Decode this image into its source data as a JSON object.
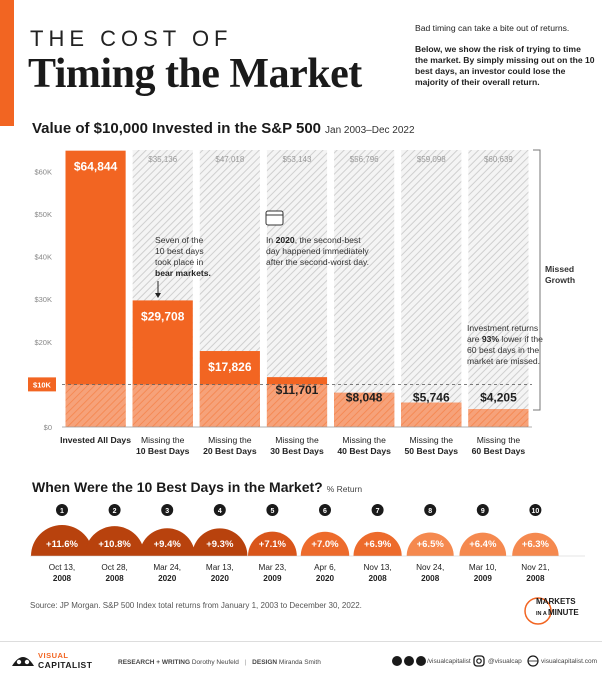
{
  "header": {
    "kicker": "THE COST OF",
    "title": "Timing the Market",
    "intro_1": "Bad timing can take a bite out of returns.",
    "intro_2": "Below, we show the risk of trying to time the market. By simply missing out on the 10 best days, an investor could lose the majority of their overall return."
  },
  "colors": {
    "accent": "#f26522",
    "dark_accent": "#c5400f",
    "grey_hatch": "#c9c9c9"
  },
  "chart_data": [
    {
      "type": "bar",
      "title": "Value of $10,000 Invested in the S&P 500",
      "subtitle": "Jan 2003–Dec 2022",
      "xlabel": "",
      "ylabel": "",
      "ylim": [
        0,
        65000
      ],
      "yticks": [
        "$0",
        "$10K",
        "$20K",
        "$30K",
        "$40K",
        "$50K",
        "$60K"
      ],
      "baseline_label": "$10K",
      "missed_label": "Missed Growth",
      "categories": [
        "Invested All Days",
        "Missing the 10 Best Days",
        "Missing the 20 Best Days",
        "Missing the 30 Best Days",
        "Missing the 40 Best Days",
        "Missing the 50 Best Days",
        "Missing the 60 Best Days"
      ],
      "values": [
        64844,
        29708,
        17826,
        11701,
        8048,
        5746,
        4205
      ],
      "value_labels": [
        "$64,844",
        "$29,708",
        "$17,826",
        "$11,701",
        "$8,048",
        "$5,746",
        "$4,205"
      ],
      "missed_totals": [
        null,
        35136,
        47018,
        53143,
        56796,
        59098,
        60639
      ],
      "missed_labels": [
        "",
        "$35,136",
        "$47,018",
        "$53,143",
        "$56,796",
        "$59,098",
        "$60,639"
      ],
      "annotations": {
        "bear_markets": "Seven of the 10 best days took place in bear markets.",
        "covid_prefix": "In ",
        "covid_year": "2020",
        "covid_rest": ", the second-best day happened immediately after the second-worst day.",
        "lower_1": "Investment returns are ",
        "lower_pct": "93%",
        "lower_2": " lower if the 60 best days in the market are missed."
      }
    },
    {
      "type": "bar",
      "title": "When Were the 10 Best Days in the Market?",
      "subtitle": "% Return",
      "categories": [
        "Oct 13, 2008",
        "Oct 28, 2008",
        "Mar 24, 2020",
        "Mar 13, 2020",
        "Mar 23, 2009",
        "Apr 6, 2020",
        "Nov 13, 2008",
        "Nov 24, 2008",
        "Mar 10, 2009",
        "Nov 21, 2008"
      ],
      "ranks": [
        "1",
        "2",
        "3",
        "4",
        "5",
        "6",
        "7",
        "8",
        "9",
        "10"
      ],
      "values": [
        11.6,
        10.8,
        9.4,
        9.3,
        7.1,
        7.0,
        6.9,
        6.5,
        6.4,
        6.3
      ],
      "value_labels": [
        "+11.6%",
        "+10.8%",
        "+9.4%",
        "+9.3%",
        "+7.1%",
        "+7.0%",
        "+6.9%",
        "+6.5%",
        "+6.4%",
        "+6.3%"
      ]
    }
  ],
  "source": "Source: JP Morgan. S&P 500 Index total returns from January 1, 2003 to December 30, 2022.",
  "logo": {
    "line1": "MARKETS",
    "line2": "IN A",
    "line3": "MINUTE"
  },
  "footer": {
    "brand_1": "VISUAL",
    "brand_2": "CAPITALIST",
    "research_label": "RESEARCH + WRITING",
    "research_name": "Dorothy Neufeld",
    "design_label": "DESIGN",
    "design_name": "Miranda Smith",
    "social_handle": "/visualcapitalist",
    "ig_handle": "@visualcap",
    "website": "visualcapitalist.com"
  }
}
